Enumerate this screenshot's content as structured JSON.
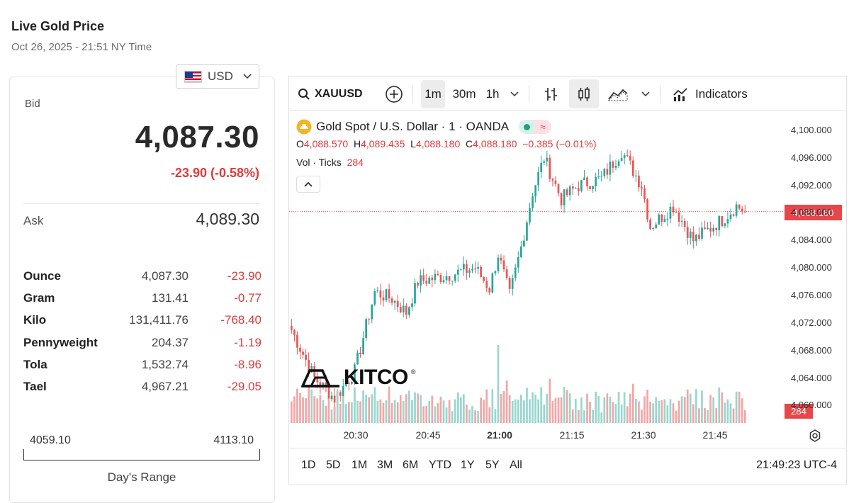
{
  "header": {
    "title": "Live Gold Price",
    "timestamp": "Oct 26, 2025 - 21:51 NY Time"
  },
  "currency": {
    "label": "USD",
    "flag": "us-flag-icon"
  },
  "bid": {
    "label": "Bid",
    "price": "4,087.30",
    "change": "-23.90 (-0.58%)"
  },
  "ask": {
    "label": "Ask",
    "price": "4,089.30"
  },
  "units": [
    {
      "name": "Ounce",
      "value": "4,087.30",
      "change": "-23.90"
    },
    {
      "name": "Gram",
      "value": "131.41",
      "change": "-0.77"
    },
    {
      "name": "Kilo",
      "value": "131,411.76",
      "change": "-768.40"
    },
    {
      "name": "Pennyweight",
      "value": "204.37",
      "change": "-1.19"
    },
    {
      "name": "Tola",
      "value": "1,532.74",
      "change": "-8.96"
    },
    {
      "name": "Tael",
      "value": "4,967.21",
      "change": "-29.05"
    }
  ],
  "days_range": {
    "low": "4059.10",
    "high": "4113.10",
    "label": "Day's Range"
  },
  "toolbar": {
    "symbol": "XAUUSD",
    "intervals": [
      "1m",
      "30m",
      "1h"
    ],
    "active_interval": "1m",
    "indicators_label": "Indicators"
  },
  "legend": {
    "title": "Gold Spot / U.S. Dollar · 1 · OANDA",
    "o_label": "O",
    "o": "4,088.570",
    "h_label": "H",
    "h": "4,089.435",
    "l_label": "L",
    "l": "4,088.180",
    "c_label": "C",
    "c": "4,088.180",
    "chg": "−0.385 (−0.01%)",
    "vol_label": "Vol · Ticks",
    "vol": "284"
  },
  "watermark": "KITCO",
  "price_badge": "4,088.180",
  "volume_badge": "284",
  "range_buttons": [
    "1D",
    "5D",
    "1M",
    "3M",
    "6M",
    "YTD",
    "1Y",
    "5Y",
    "All"
  ],
  "clock": "21:49:23 UTC-4",
  "colors": {
    "up": "#26a69a",
    "down": "#ef5350",
    "vol_up": "#98d7cf",
    "vol_down": "#f3a6a6",
    "accent_red": "#e03b3b"
  },
  "chart_data": {
    "type": "candlestick",
    "y_ticks": [
      "4,100.000",
      "4,096.000",
      "4,092.000",
      "4,088.000",
      "4,084.000",
      "4,080.000",
      "4,076.000",
      "4,072.000",
      "4,068.000",
      "4,064.000",
      "4,060.000"
    ],
    "ylim": [
      4058.8,
      4100.4
    ],
    "x_ticks": [
      "20:30",
      "20:45",
      "21:00",
      "21:15",
      "21:30",
      "21:45"
    ],
    "x_tick_bold": "21:00",
    "last_price": 4088.18,
    "waypoints": [
      [
        0,
        4071
      ],
      [
        8,
        4064
      ],
      [
        15,
        4061
      ],
      [
        22,
        4065
      ],
      [
        29,
        4076.5
      ],
      [
        35,
        4075.5
      ],
      [
        40,
        4073.5
      ],
      [
        44,
        4078
      ],
      [
        55,
        4079
      ],
      [
        64,
        4080
      ],
      [
        69,
        4077
      ],
      [
        72,
        4082
      ],
      [
        76,
        4076
      ],
      [
        80,
        4083
      ],
      [
        84,
        4091
      ],
      [
        88,
        4096
      ],
      [
        94,
        4090
      ],
      [
        100,
        4092
      ],
      [
        108,
        4093
      ],
      [
        115,
        4097
      ],
      [
        122,
        4092
      ],
      [
        125,
        4086
      ],
      [
        133,
        4089
      ],
      [
        140,
        4084
      ],
      [
        150,
        4087
      ],
      [
        155,
        4089
      ],
      [
        158,
        4088.2
      ]
    ]
  }
}
